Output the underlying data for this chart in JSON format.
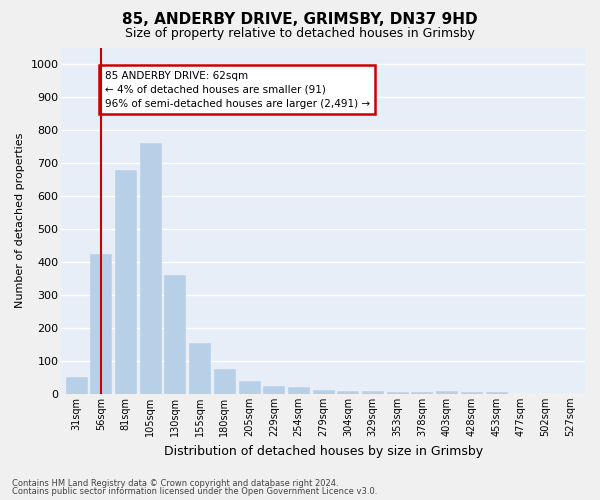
{
  "title1": "85, ANDERBY DRIVE, GRIMSBY, DN37 9HD",
  "title2": "Size of property relative to detached houses in Grimsby",
  "xlabel": "Distribution of detached houses by size in Grimsby",
  "ylabel": "Number of detached properties",
  "categories": [
    "31sqm",
    "56sqm",
    "81sqm",
    "105sqm",
    "130sqm",
    "155sqm",
    "180sqm",
    "205sqm",
    "229sqm",
    "254sqm",
    "279sqm",
    "304sqm",
    "329sqm",
    "353sqm",
    "378sqm",
    "403sqm",
    "428sqm",
    "453sqm",
    "477sqm",
    "502sqm",
    "527sqm"
  ],
  "values": [
    50,
    425,
    680,
    760,
    360,
    155,
    75,
    38,
    25,
    20,
    13,
    8,
    8,
    5,
    5,
    8,
    5,
    5,
    0,
    0,
    0
  ],
  "bar_color": "#b8cfe8",
  "bar_edge_color": "#b8cfe8",
  "background_color": "#e8eef8",
  "grid_color": "#ffffff",
  "vline_x": 1.0,
  "vline_color": "#cc0000",
  "annotation_line1": "85 ANDERBY DRIVE: 62sqm",
  "annotation_line2": "← 4% of detached houses are smaller (91)",
  "annotation_line3": "96% of semi-detached houses are larger (2,491) →",
  "annotation_box_color": "#ffffff",
  "annotation_box_edge": "#cc0000",
  "ylim": [
    0,
    1050
  ],
  "yticks": [
    0,
    100,
    200,
    300,
    400,
    500,
    600,
    700,
    800,
    900,
    1000
  ],
  "footnote1": "Contains HM Land Registry data © Crown copyright and database right 2024.",
  "footnote2": "Contains public sector information licensed under the Open Government Licence v3.0.",
  "fig_width": 6.0,
  "fig_height": 5.0,
  "title1_fontsize": 11,
  "title2_fontsize": 9,
  "ylabel_fontsize": 8,
  "xlabel_fontsize": 9
}
